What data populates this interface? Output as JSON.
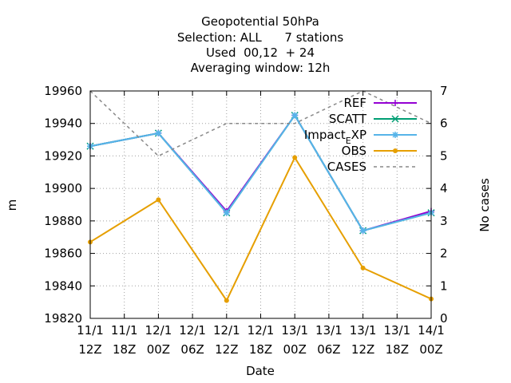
{
  "chart_data": {
    "type": "line",
    "title_lines": [
      "Geopotential 50hPa",
      "Selection: ALL      7 stations",
      "Used  00,12  + 24",
      "Averaging window: 12h"
    ],
    "xlabel": "Date",
    "ylabel": "m",
    "y2label": "No cases",
    "ylim": [
      19820,
      19960
    ],
    "y2lim": [
      0,
      7
    ],
    "yticks": [
      19820,
      19840,
      19860,
      19880,
      19900,
      19920,
      19940,
      19960
    ],
    "y2ticks": [
      0,
      1,
      2,
      3,
      4,
      5,
      6,
      7
    ],
    "x_ticks": [
      [
        "11/1",
        "12Z"
      ],
      [
        "11/1",
        "18Z"
      ],
      [
        "12/1",
        "00Z"
      ],
      [
        "12/1",
        "06Z"
      ],
      [
        "12/1",
        "12Z"
      ],
      [
        "12/1",
        "18Z"
      ],
      [
        "13/1",
        "00Z"
      ],
      [
        "13/1",
        "06Z"
      ],
      [
        "13/1",
        "12Z"
      ],
      [
        "13/1",
        "18Z"
      ],
      [
        "14/1",
        "00Z"
      ]
    ],
    "x_points": [
      0,
      2,
      4,
      6,
      8,
      10
    ],
    "grid": true,
    "legend_position": "top-right",
    "series": [
      {
        "name": "REF",
        "color": "#9400d3",
        "marker": "plus",
        "axis": "y1",
        "dash": false,
        "values": [
          19926,
          19934,
          19886,
          19945,
          19874,
          19886
        ]
      },
      {
        "name": "SCATT",
        "color": "#009e73",
        "marker": "cross",
        "axis": "y1",
        "dash": false,
        "values": [
          19926,
          19934,
          19885,
          19945,
          19874,
          19885
        ]
      },
      {
        "name": "Impact_EXP",
        "color": "#56b4e9",
        "marker": "star",
        "axis": "y1",
        "dash": false,
        "values": [
          19926,
          19934,
          19885,
          19945,
          19874,
          19885
        ]
      },
      {
        "name": "OBS",
        "color": "#e69f00",
        "marker": "dot",
        "axis": "y1",
        "dash": false,
        "values": [
          19867,
          19893,
          19831,
          19919,
          19851,
          19832
        ]
      },
      {
        "name": "CASES",
        "color": "#888888",
        "marker": "none",
        "axis": "y2",
        "dash": true,
        "values": [
          7,
          5,
          6,
          6,
          7,
          6
        ]
      }
    ]
  }
}
